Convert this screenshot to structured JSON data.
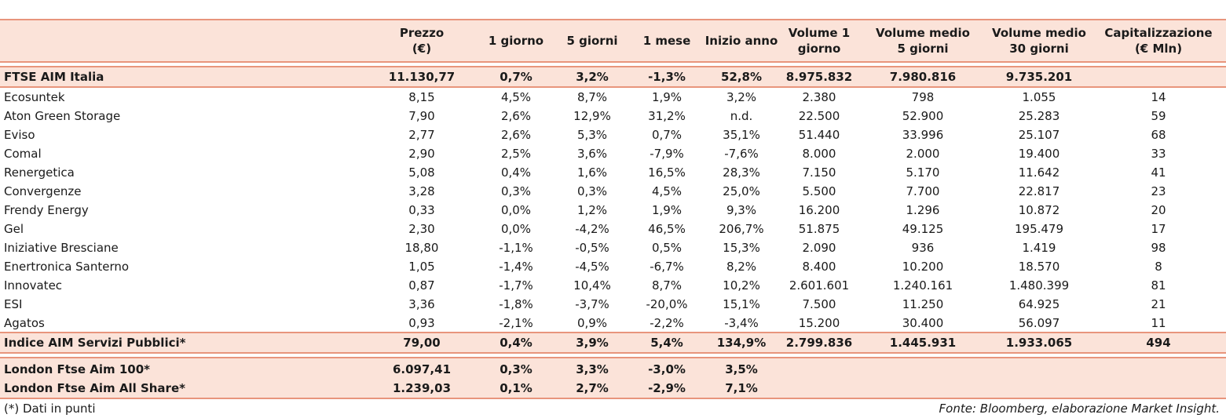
{
  "header": {
    "columns": [
      {
        "l1": "Prezzo",
        "l2": "(€)"
      },
      {
        "l1": "1 giorno",
        "l2": ""
      },
      {
        "l1": "5 giorni",
        "l2": ""
      },
      {
        "l1": "1 mese",
        "l2": ""
      },
      {
        "l1": "Inizio anno",
        "l2": ""
      },
      {
        "l1": "Volume 1",
        "l2": "giorno"
      },
      {
        "l1": "Volume medio",
        "l2": "5 giorni"
      },
      {
        "l1": "Volume medio",
        "l2": "30 giorni"
      },
      {
        "l1": "Capitalizzazione",
        "l2": "(€ Mln)"
      }
    ]
  },
  "index_row": {
    "name": "FTSE AIM Italia",
    "values": [
      "11.130,77",
      "0,7%",
      "3,2%",
      "-1,3%",
      "52,8%",
      "8.975.832",
      "7.980.816",
      "9.735.201",
      ""
    ]
  },
  "rows": [
    {
      "name": "Ecosuntek",
      "values": [
        "8,15",
        "4,5%",
        "8,7%",
        "1,9%",
        "3,2%",
        "2.380",
        "798",
        "1.055",
        "14"
      ]
    },
    {
      "name": "Aton Green Storage",
      "values": [
        "7,90",
        "2,6%",
        "12,9%",
        "31,2%",
        "n.d.",
        "22.500",
        "52.900",
        "25.283",
        "59"
      ]
    },
    {
      "name": "Eviso",
      "values": [
        "2,77",
        "2,6%",
        "5,3%",
        "0,7%",
        "35,1%",
        "51.440",
        "33.996",
        "25.107",
        "68"
      ]
    },
    {
      "name": "Comal",
      "values": [
        "2,90",
        "2,5%",
        "3,6%",
        "-7,9%",
        "-7,6%",
        "8.000",
        "2.000",
        "19.400",
        "33"
      ]
    },
    {
      "name": "Renergetica",
      "values": [
        "5,08",
        "0,4%",
        "1,6%",
        "16,5%",
        "28,3%",
        "7.150",
        "5.170",
        "11.642",
        "41"
      ]
    },
    {
      "name": "Convergenze",
      "values": [
        "3,28",
        "0,3%",
        "0,3%",
        "4,5%",
        "25,0%",
        "5.500",
        "7.700",
        "22.817",
        "23"
      ]
    },
    {
      "name": "Frendy Energy",
      "values": [
        "0,33",
        "0,0%",
        "1,2%",
        "1,9%",
        "9,3%",
        "16.200",
        "1.296",
        "10.872",
        "20"
      ]
    },
    {
      "name": "Gel",
      "values": [
        "2,30",
        "0,0%",
        "-4,2%",
        "46,5%",
        "206,7%",
        "51.875",
        "49.125",
        "195.479",
        "17"
      ]
    },
    {
      "name": "Iniziative Bresciane",
      "values": [
        "18,80",
        "-1,1%",
        "-0,5%",
        "0,5%",
        "15,3%",
        "2.090",
        "936",
        "1.419",
        "98"
      ]
    },
    {
      "name": "Enertronica Santerno",
      "values": [
        "1,05",
        "-1,4%",
        "-4,5%",
        "-6,7%",
        "8,2%",
        "8.400",
        "10.200",
        "18.570",
        "8"
      ]
    },
    {
      "name": "Innovatec",
      "values": [
        "0,87",
        "-1,7%",
        "10,4%",
        "8,7%",
        "10,2%",
        "2.601.601",
        "1.240.161",
        "1.480.399",
        "81"
      ]
    },
    {
      "name": "ESI",
      "values": [
        "3,36",
        "-1,8%",
        "-3,7%",
        "-20,0%",
        "15,1%",
        "7.500",
        "11.250",
        "64.925",
        "21"
      ]
    },
    {
      "name": "Agatos",
      "values": [
        "0,93",
        "-2,1%",
        "0,9%",
        "-2,2%",
        "-3,4%",
        "15.200",
        "30.400",
        "56.097",
        "11"
      ]
    }
  ],
  "sector_row": {
    "name": "Indice AIM Servizi Pubblici*",
    "values": [
      "79,00",
      "0,4%",
      "3,9%",
      "5,4%",
      "134,9%",
      "2.799.836",
      "1.445.931",
      "1.933.065",
      "494"
    ]
  },
  "london_rows": [
    {
      "name": "London Ftse Aim 100*",
      "values": [
        "6.097,41",
        "0,3%",
        "3,3%",
        "-3,0%",
        "3,5%",
        "",
        "",
        "",
        ""
      ]
    },
    {
      "name": "London Ftse Aim All Share*",
      "values": [
        "1.239,03",
        "0,1%",
        "2,7%",
        "-2,9%",
        "7,1%",
        "",
        "",
        "",
        ""
      ]
    }
  ],
  "footer": {
    "note": "(*) Dati in punti",
    "source": "Fonte: Bloomberg, elaborazione Market Insight."
  },
  "colors": {
    "band": "#fbe3d9",
    "rule": "#e8957c"
  }
}
